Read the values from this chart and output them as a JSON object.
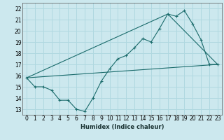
{
  "xlabel": "Humidex (Indice chaleur)",
  "bg_color": "#cce8ee",
  "line_color": "#1a6b6b",
  "grid_color": "#b0d8e0",
  "xlim": [
    -0.5,
    23.5
  ],
  "ylim": [
    12.5,
    22.5
  ],
  "yticks": [
    13,
    14,
    15,
    16,
    17,
    18,
    19,
    20,
    21,
    22
  ],
  "xticks": [
    0,
    1,
    2,
    3,
    4,
    5,
    6,
    7,
    8,
    9,
    10,
    11,
    12,
    13,
    14,
    15,
    16,
    17,
    18,
    19,
    20,
    21,
    22,
    23
  ],
  "series1_x": [
    0,
    1,
    2,
    3,
    4,
    5,
    6,
    7,
    8,
    9,
    10,
    11,
    12,
    13,
    14,
    15,
    16,
    17,
    18,
    19,
    20,
    21,
    22,
    23
  ],
  "series1_y": [
    15.8,
    15.0,
    15.0,
    14.7,
    13.8,
    13.8,
    13.0,
    12.8,
    14.0,
    15.5,
    16.6,
    17.5,
    17.8,
    18.5,
    19.3,
    19.0,
    20.2,
    21.5,
    21.3,
    21.8,
    20.6,
    19.2,
    17.0,
    17.0
  ],
  "series2_x": [
    0,
    23
  ],
  "series2_y": [
    15.8,
    17.0
  ],
  "series3_x": [
    0,
    17,
    23
  ],
  "series3_y": [
    15.8,
    21.5,
    17.0
  ]
}
